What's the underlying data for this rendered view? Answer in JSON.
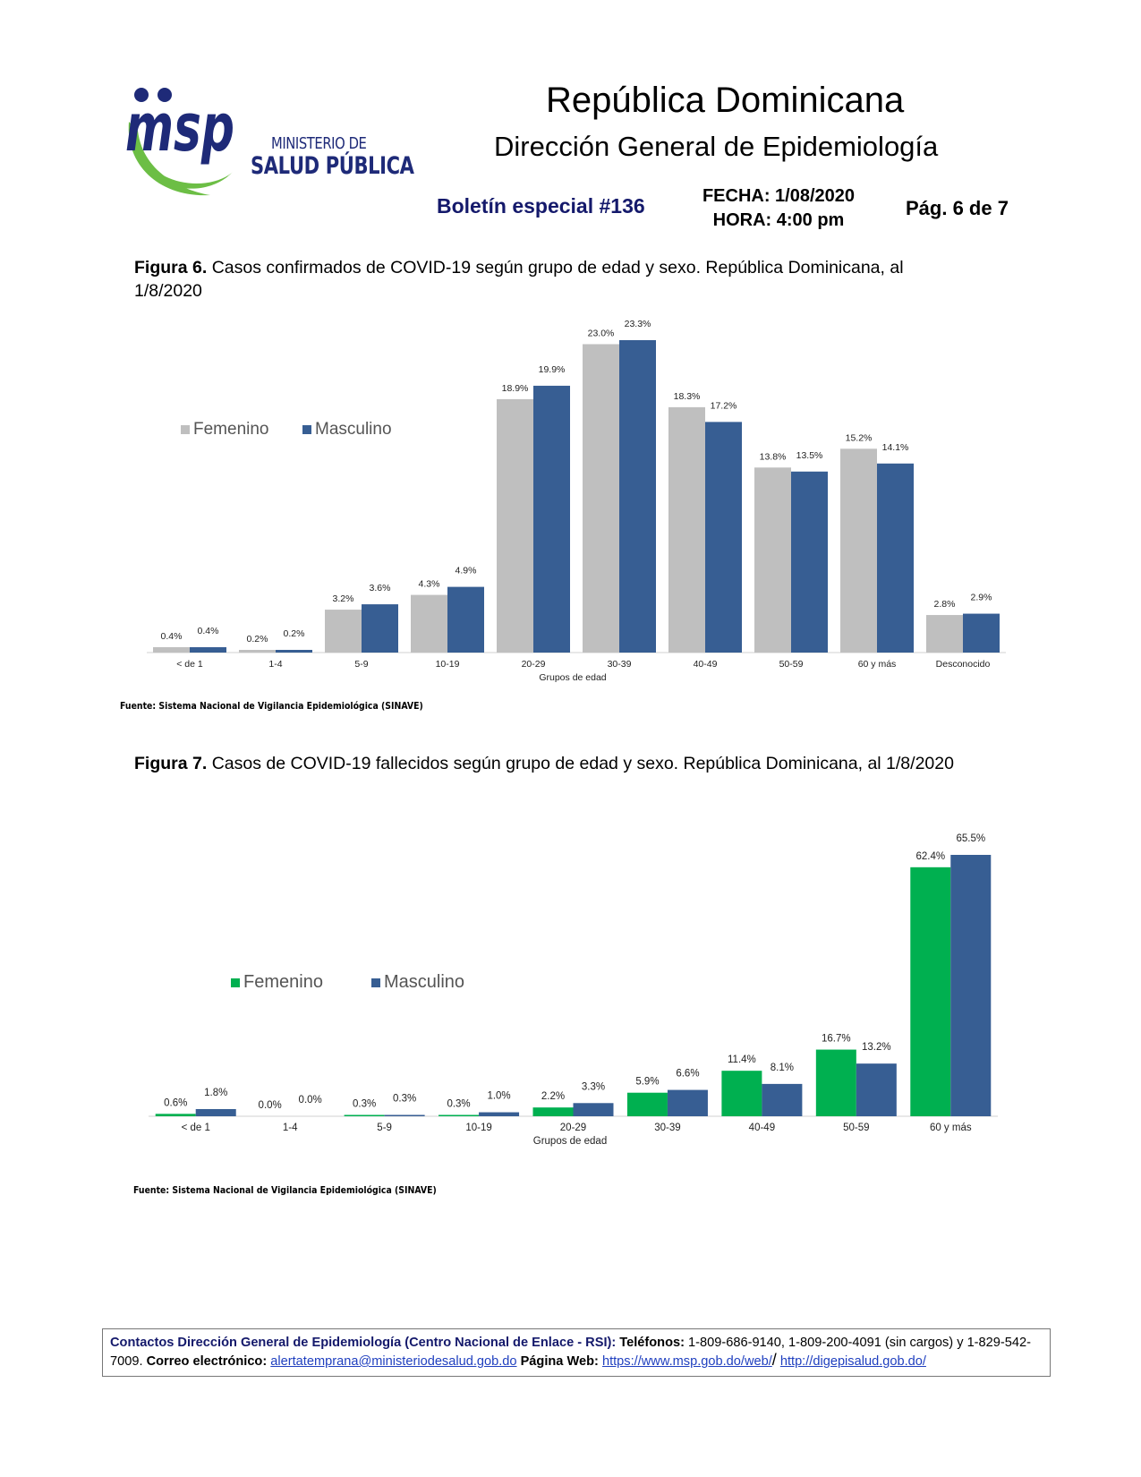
{
  "header": {
    "logo_text": "msp",
    "logo_line1": "MINISTERIO DE",
    "logo_line2": "SALUD PÚBLICA",
    "title": "República Dominicana",
    "subtitle": "Dirección General de Epidemiología",
    "bulletin": "Boletín especial #136",
    "date": "FECHA: 1/08/2020",
    "time": "HORA: 4:00 pm",
    "page": "Pág. 6 de 7"
  },
  "figure6": {
    "label": "Figura 6.",
    "caption": "Casos confirmados de COVID-19 según grupo de edad y sexo. República Dominicana, al 1/8/2020",
    "source": "Fuente: Sistema Nacional de Vigilancia Epidemiológica (SINAVE)"
  },
  "figure7": {
    "label": "Figura 7.",
    "caption": "Casos de COVID-19 fallecidos según grupo de edad y sexo. República Dominicana, al 1/8/2020",
    "source": "Fuente: Sistema Nacional de Vigilancia Epidemiológica (SINAVE)"
  },
  "chart_data": [
    {
      "type": "bar",
      "categories": [
        "< de 1",
        "1-4",
        "5-9",
        "10-19",
        "20-29",
        "30-39",
        "40-49",
        "50-59",
        "60 y más",
        "Desconocido"
      ],
      "series": [
        {
          "name": "Femenino",
          "color": "#bfbfbf",
          "values": [
            0.4,
            0.2,
            3.2,
            4.3,
            18.9,
            23.0,
            18.3,
            13.8,
            15.2,
            2.8
          ]
        },
        {
          "name": "Masculino",
          "color": "#375e93",
          "values": [
            0.4,
            0.2,
            3.6,
            4.9,
            19.9,
            23.3,
            17.2,
            13.5,
            14.1,
            2.9
          ]
        }
      ],
      "xlabel": "Grupos de edad",
      "ylabel": "",
      "ylim": [
        0,
        23.3
      ],
      "legend": "top-left",
      "grid": false
    },
    {
      "type": "bar",
      "categories": [
        "< de 1",
        "1-4",
        "5-9",
        "10-19",
        "20-29",
        "30-39",
        "40-49",
        "50-59",
        "60 y más"
      ],
      "series": [
        {
          "name": "Femenino",
          "color": "#00b050",
          "values": [
            0.6,
            0.0,
            0.3,
            0.3,
            2.2,
            5.9,
            11.4,
            16.7,
            62.4
          ]
        },
        {
          "name": "Masculino",
          "color": "#375e93",
          "values": [
            1.8,
            0.0,
            0.3,
            1.0,
            3.3,
            6.6,
            8.1,
            13.2,
            65.5
          ]
        }
      ],
      "xlabel": "Grupos de edad",
      "ylabel": "",
      "ylim": [
        0,
        65.5
      ],
      "legend": "top-left",
      "grid": false
    }
  ],
  "footer": {
    "contacts_label": "Contactos Dirección General de Epidemiología (Centro Nacional de Enlace - RSI):",
    "phones_label": "Teléfonos:",
    "phones": "1-809-686-9140, 1-809-200-4091 (sin cargos) y 1-829-542-7009.",
    "email_label": "Correo electrónico:",
    "email": "alertatemprana@ministeriodesalud.gob.do",
    "web_label": "Página Web:",
    "web1": "https://www.msp.gob.do/web/",
    "separator": "/",
    "web2": "http://digepisalud.gob.do/"
  }
}
